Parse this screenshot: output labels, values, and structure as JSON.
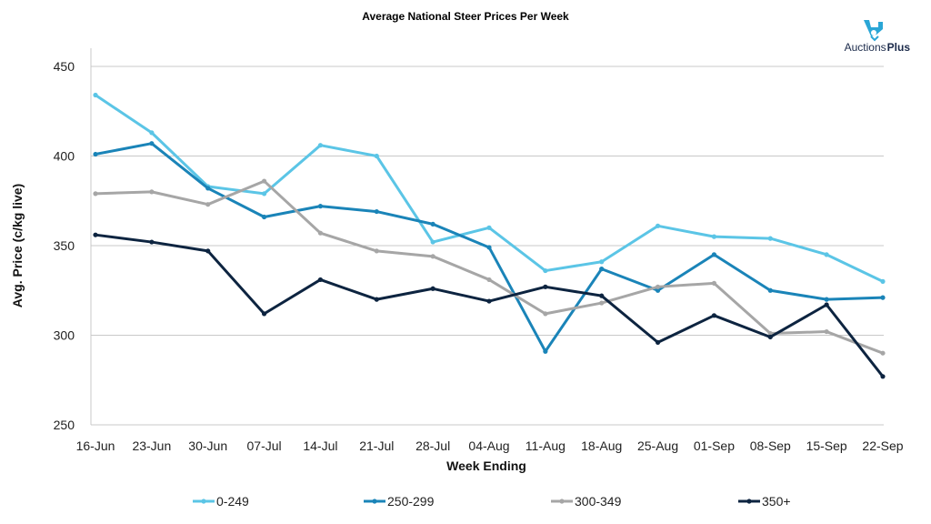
{
  "logo": {
    "text_regular": "Auctions",
    "text_bold": "Plus",
    "color_primary": "#2aa6d6",
    "color_text": "#1b2a4a"
  },
  "chart_data": {
    "type": "line",
    "title": "Average National Steer Prices Per Week",
    "xlabel": "Week Ending",
    "ylabel": "Avg. Price (c/kg live)",
    "ylim": [
      250,
      450
    ],
    "yticks": [
      250,
      300,
      350,
      400,
      450
    ],
    "grid": true,
    "legend_position": "bottom",
    "categories": [
      "16-Jun",
      "23-Jun",
      "30-Jun",
      "07-Jul",
      "14-Jul",
      "21-Jul",
      "28-Jul",
      "04-Aug",
      "11-Aug",
      "18-Aug",
      "25-Aug",
      "01-Sep",
      "08-Sep",
      "15-Sep",
      "22-Sep"
    ],
    "series": [
      {
        "name": "0-249",
        "color": "#5bc5e6",
        "values": [
          434,
          413,
          383,
          379,
          406,
          400,
          352,
          360,
          336,
          341,
          361,
          355,
          354,
          345,
          330
        ]
      },
      {
        "name": "250-299",
        "color": "#1a84b8",
        "values": [
          401,
          407,
          382,
          366,
          372,
          369,
          362,
          349,
          291,
          337,
          325,
          345,
          325,
          320,
          321
        ]
      },
      {
        "name": "300-349",
        "color": "#a6a6a6",
        "values": [
          379,
          380,
          373,
          386,
          357,
          347,
          344,
          331,
          312,
          318,
          327,
          329,
          301,
          302,
          290
        ]
      },
      {
        "name": "350+",
        "color": "#0d2440",
        "values": [
          356,
          352,
          347,
          312,
          331,
          320,
          326,
          319,
          327,
          322,
          296,
          311,
          299,
          317,
          277
        ]
      }
    ]
  }
}
